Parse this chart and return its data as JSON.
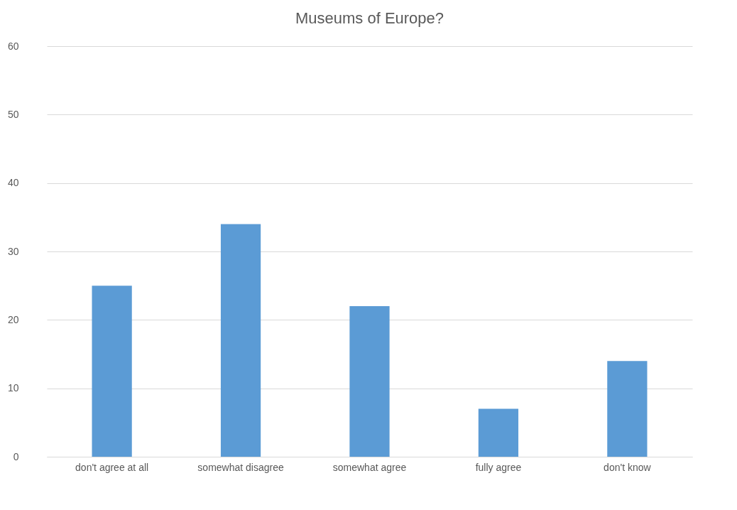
{
  "chart_data": {
    "type": "bar",
    "title": "Museums of Europe?",
    "categories": [
      "don't agree at all",
      "somewhat disagree",
      "somewhat agree",
      "fully agree",
      "don't know"
    ],
    "values": [
      25,
      34,
      22,
      7,
      14
    ],
    "color": "#5b9bd5",
    "ylim": [
      0,
      60
    ],
    "yticks": [
      0,
      10,
      20,
      30,
      40,
      50,
      60
    ],
    "grid": "y"
  }
}
